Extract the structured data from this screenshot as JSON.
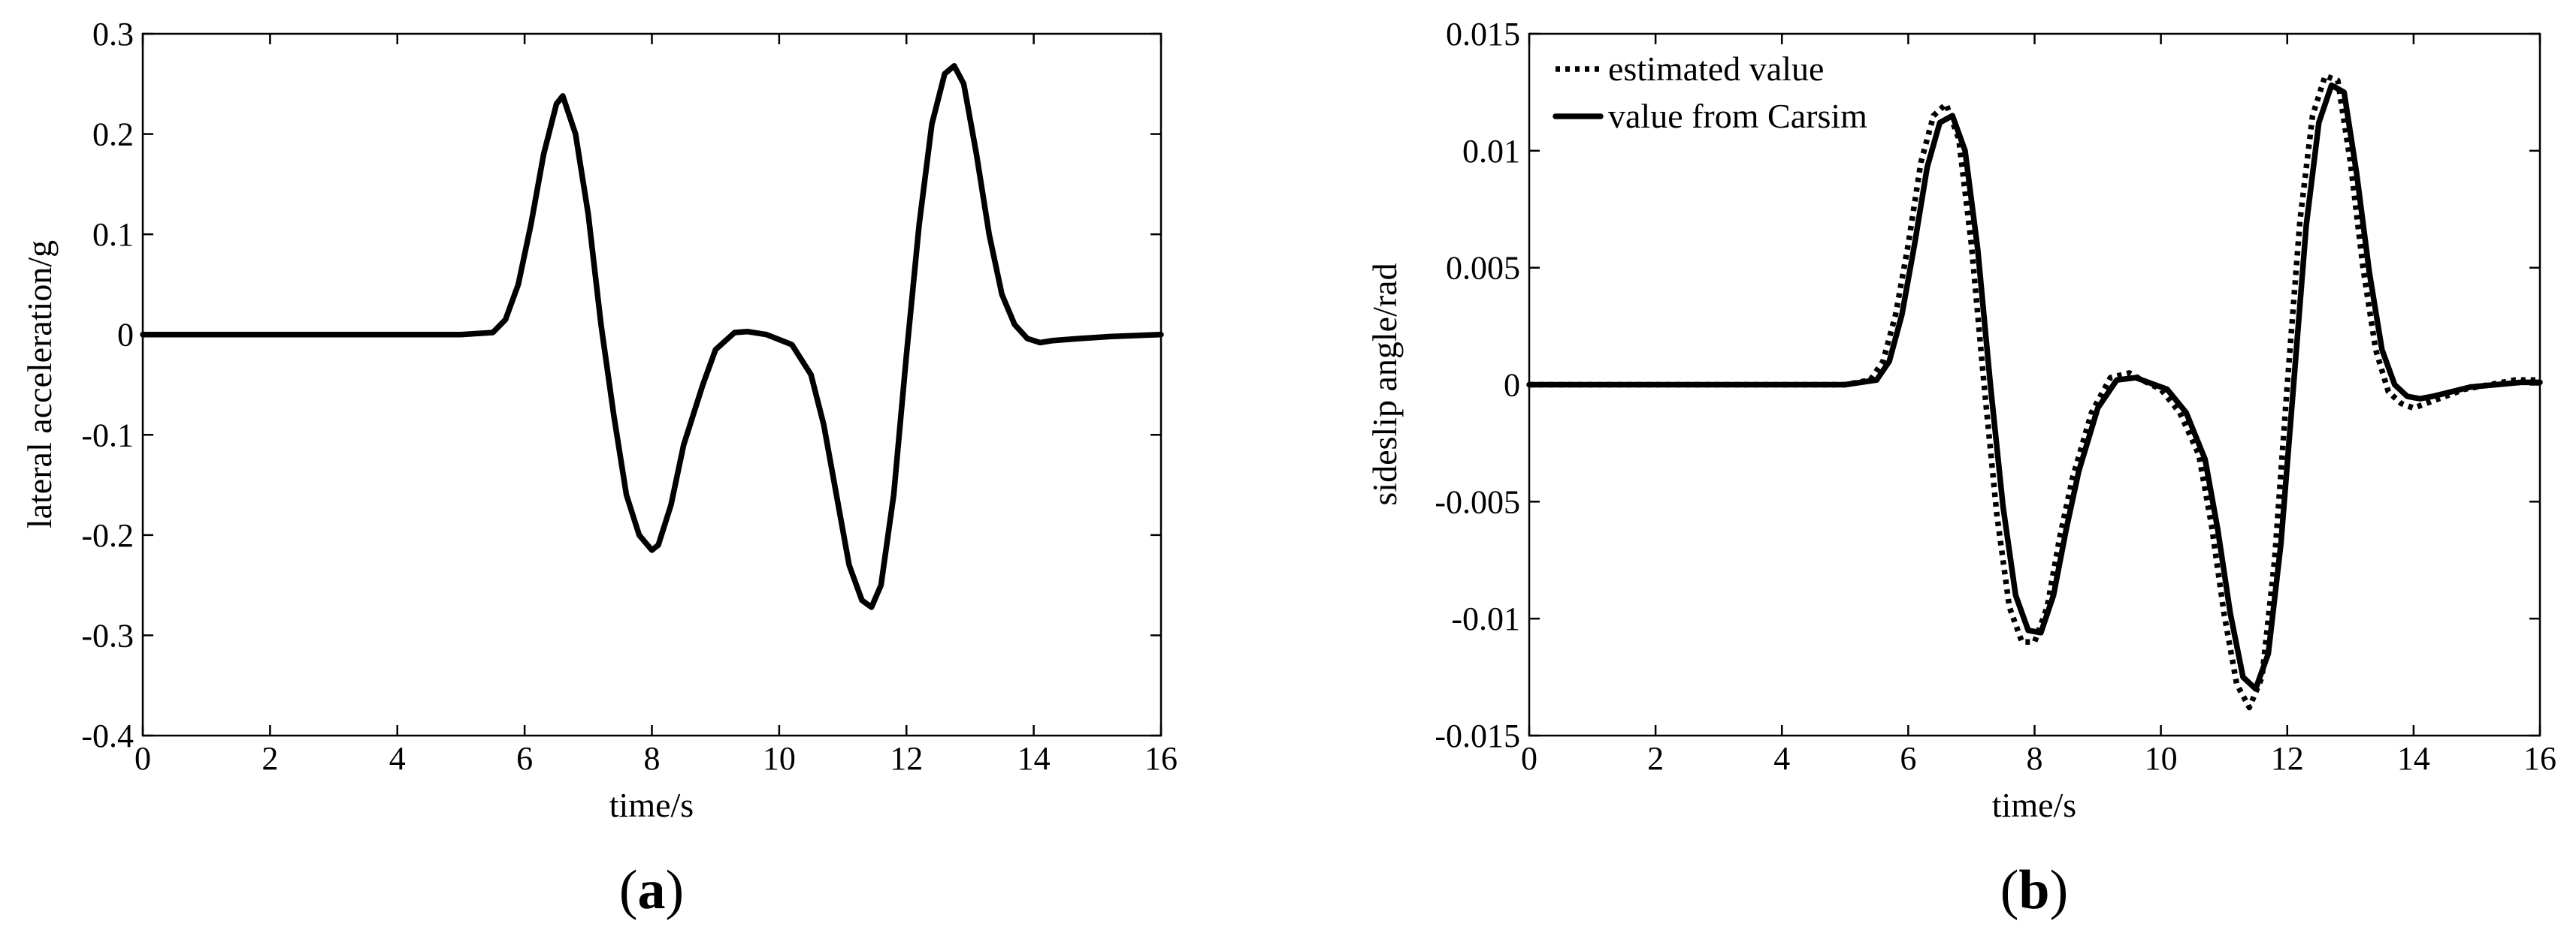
{
  "panels": [
    {
      "label_open": "(",
      "label_letter": "a",
      "label_close": ")"
    },
    {
      "label_open": "(",
      "label_letter": "b",
      "label_close": ")"
    }
  ],
  "chart_data": [
    {
      "type": "line",
      "title": "",
      "xlabel": "time/s",
      "ylabel": "lateral acceleration/g",
      "xlim": [
        0,
        16
      ],
      "ylim": [
        -0.4,
        0.3
      ],
      "xticks": [
        0,
        2,
        4,
        6,
        8,
        10,
        12,
        14,
        16
      ],
      "yticks": [
        -0.4,
        -0.3,
        -0.2,
        -0.1,
        0,
        0.1,
        0.2,
        0.3
      ],
      "xtick_labels": [
        "0",
        "2",
        "4",
        "6",
        "8",
        "10",
        "12",
        "14",
        "16"
      ],
      "ytick_labels": [
        "-0.4",
        "-0.3",
        "-0.2",
        "-0.1",
        "0",
        "0.1",
        "0.2",
        "0.3"
      ],
      "grid": false,
      "series": [
        {
          "style": "solid",
          "color": "#000000",
          "x": [
            0,
            5.0,
            5.5,
            5.7,
            5.9,
            6.1,
            6.3,
            6.5,
            6.6,
            6.8,
            7.0,
            7.2,
            7.4,
            7.6,
            7.8,
            8.0,
            8.1,
            8.3,
            8.5,
            8.8,
            9.0,
            9.3,
            9.5,
            9.8,
            10.2,
            10.5,
            10.7,
            10.9,
            11.1,
            11.3,
            11.45,
            11.6,
            11.8,
            12.0,
            12.2,
            12.4,
            12.6,
            12.75,
            12.9,
            13.1,
            13.3,
            13.5,
            13.7,
            13.9,
            14.1,
            14.3,
            14.7,
            15.2,
            16.0
          ],
          "y": [
            0,
            0,
            0.002,
            0.015,
            0.05,
            0.11,
            0.18,
            0.23,
            0.238,
            0.2,
            0.12,
            0.01,
            -0.08,
            -0.16,
            -0.2,
            -0.215,
            -0.21,
            -0.17,
            -0.11,
            -0.05,
            -0.015,
            0.002,
            0.003,
            0.0,
            -0.01,
            -0.04,
            -0.09,
            -0.16,
            -0.23,
            -0.265,
            -0.272,
            -0.25,
            -0.16,
            -0.02,
            0.11,
            0.21,
            0.26,
            0.268,
            0.25,
            0.18,
            0.1,
            0.04,
            0.01,
            -0.004,
            -0.008,
            -0.006,
            -0.004,
            -0.002,
            0.0
          ]
        }
      ]
    },
    {
      "type": "line",
      "title": "",
      "xlabel": "time/s",
      "ylabel": "sideslip angle/rad",
      "xlim": [
        0,
        16
      ],
      "ylim": [
        -0.015,
        0.015
      ],
      "xticks": [
        0,
        2,
        4,
        6,
        8,
        10,
        12,
        14,
        16
      ],
      "yticks": [
        -0.015,
        -0.01,
        -0.005,
        0,
        0.005,
        0.01,
        0.015
      ],
      "xtick_labels": [
        "0",
        "2",
        "4",
        "6",
        "8",
        "10",
        "12",
        "14",
        "16"
      ],
      "ytick_labels": [
        "-0.015",
        "-0.01",
        "-0.005",
        "0",
        "0.005",
        "0.01",
        "0.015"
      ],
      "grid": false,
      "legend": {
        "position": "top-left",
        "entries": [
          "estimated value",
          "value from Carsim"
        ]
      },
      "series": [
        {
          "name": "estimated value",
          "style": "dotted",
          "color": "#000000",
          "x": [
            0,
            5.0,
            5.4,
            5.6,
            5.8,
            6.0,
            6.2,
            6.4,
            6.6,
            6.8,
            7.0,
            7.2,
            7.4,
            7.6,
            7.8,
            8.0,
            8.2,
            8.4,
            8.6,
            8.9,
            9.2,
            9.5,
            9.7,
            10.0,
            10.3,
            10.6,
            10.8,
            11.0,
            11.2,
            11.4,
            11.6,
            11.8,
            12.0,
            12.2,
            12.4,
            12.6,
            12.8,
            13.0,
            13.2,
            13.4,
            13.6,
            13.8,
            14.0,
            14.2,
            14.5,
            14.8,
            15.2,
            15.6,
            16.0
          ],
          "y": [
            0,
            0,
            0.0002,
            0.001,
            0.003,
            0.006,
            0.0095,
            0.0115,
            0.012,
            0.0105,
            0.006,
            0.0,
            -0.0055,
            -0.0095,
            -0.011,
            -0.011,
            -0.0095,
            -0.0065,
            -0.004,
            -0.0012,
            0.0003,
            0.0005,
            0.0002,
            -0.0002,
            -0.0012,
            -0.003,
            -0.006,
            -0.0098,
            -0.0128,
            -0.0138,
            -0.0125,
            -0.0075,
            0.0,
            0.007,
            0.0115,
            0.0132,
            0.013,
            0.0095,
            0.005,
            0.0015,
            -0.0003,
            -0.0008,
            -0.001,
            -0.0008,
            -0.0005,
            -0.0002,
            0.0,
            0.0002,
            0.0002
          ]
        },
        {
          "name": "value from Carsim",
          "style": "solid",
          "color": "#000000",
          "x": [
            0,
            5.0,
            5.5,
            5.7,
            5.9,
            6.1,
            6.3,
            6.5,
            6.7,
            6.9,
            7.1,
            7.3,
            7.5,
            7.7,
            7.9,
            8.1,
            8.3,
            8.5,
            8.7,
            9.0,
            9.3,
            9.6,
            9.8,
            10.1,
            10.4,
            10.7,
            10.9,
            11.1,
            11.3,
            11.5,
            11.7,
            11.9,
            12.1,
            12.3,
            12.5,
            12.7,
            12.9,
            13.1,
            13.3,
            13.5,
            13.7,
            13.9,
            14.1,
            14.3,
            14.6,
            14.9,
            15.3,
            15.7,
            16.0
          ],
          "y": [
            0,
            0,
            0.0002,
            0.001,
            0.003,
            0.006,
            0.0093,
            0.0112,
            0.0115,
            0.01,
            0.0058,
            0.0,
            -0.0052,
            -0.009,
            -0.0105,
            -0.0106,
            -0.009,
            -0.0062,
            -0.0037,
            -0.001,
            0.0002,
            0.0003,
            0.0001,
            -0.0002,
            -0.0012,
            -0.0032,
            -0.0062,
            -0.0098,
            -0.0125,
            -0.013,
            -0.0115,
            -0.0068,
            0.0,
            0.0068,
            0.0112,
            0.0128,
            0.0125,
            0.009,
            0.0048,
            0.0015,
            0.0,
            -0.0005,
            -0.0006,
            -0.0005,
            -0.0003,
            -0.0001,
            0.0,
            0.0001,
            0.0001
          ]
        }
      ]
    }
  ]
}
